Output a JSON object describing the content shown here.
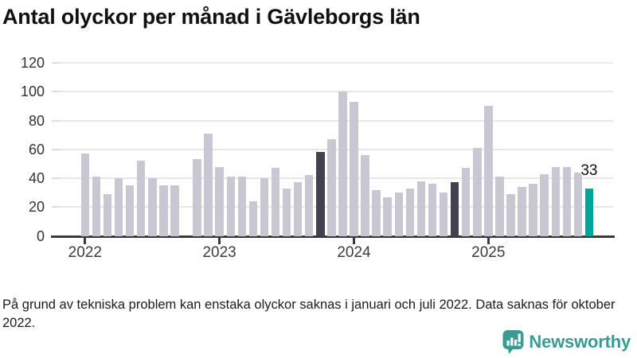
{
  "title": "Antal olyckor per månad i Gävleborgs län",
  "footer": "På grund av tekniska problem kan enstaka olyckor saknas i januari och juli 2022. Data saknas för oktober 2022.",
  "logo": {
    "text": "Newsworthy",
    "icon": "newsworthy-chart-bubble-icon"
  },
  "colors": {
    "bar": "#c9c7d1",
    "highlight_dark": "#434050",
    "accent": "#00a69c",
    "gridline": "#e8e8e8",
    "axis": "#3a3a3a",
    "logo_teal": "#3a9b94"
  },
  "chart_data": {
    "type": "bar",
    "title": "Antal olyckor per månad i Gävleborgs län",
    "xlabel": "",
    "ylabel": "",
    "ylim": [
      0,
      130
    ],
    "y_ticks": [
      0,
      20,
      40,
      60,
      80,
      100,
      120
    ],
    "grid": "horizontal",
    "x_year_ticks": [
      "2022",
      "2023",
      "2024",
      "2025"
    ],
    "categories": [
      "2022-01",
      "2022-02",
      "2022-03",
      "2022-04",
      "2022-05",
      "2022-06",
      "2022-07",
      "2022-08",
      "2022-09",
      "2022-10",
      "2022-11",
      "2022-12",
      "2023-01",
      "2023-02",
      "2023-03",
      "2023-04",
      "2023-05",
      "2023-06",
      "2023-07",
      "2023-08",
      "2023-09",
      "2023-10",
      "2023-11",
      "2023-12",
      "2024-01",
      "2024-02",
      "2024-03",
      "2024-04",
      "2024-05",
      "2024-06",
      "2024-07",
      "2024-08",
      "2024-09",
      "2024-10",
      "2024-11",
      "2024-12",
      "2025-01",
      "2025-02",
      "2025-03",
      "2025-04",
      "2025-05",
      "2025-06",
      "2025-07",
      "2025-08",
      "2025-09",
      "2025-10"
    ],
    "values": [
      57,
      41,
      29,
      40,
      35,
      52,
      40,
      35,
      35,
      null,
      53,
      71,
      48,
      41,
      41,
      24,
      40,
      47,
      33,
      37,
      42,
      58,
      67,
      100,
      93,
      56,
      32,
      27,
      30,
      33,
      38,
      36,
      30,
      37,
      47,
      61,
      90,
      41,
      29,
      34,
      36,
      43,
      48,
      48,
      44,
      33
    ],
    "missing": [
      "2022-10"
    ],
    "bar_styles": {
      "2023-10": "dark",
      "2024-10": "dark",
      "2025-10": "accent"
    },
    "annotation": {
      "category": "2025-10",
      "label": "33"
    },
    "legend": "none"
  }
}
